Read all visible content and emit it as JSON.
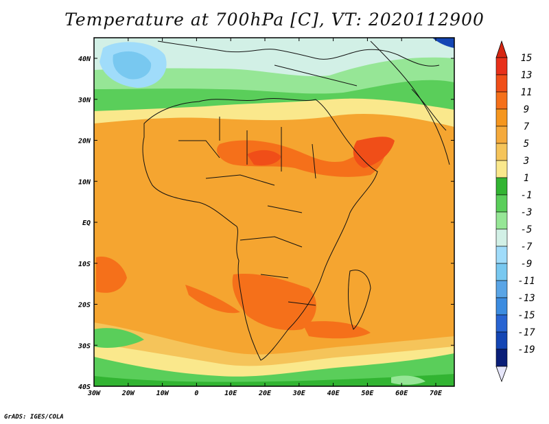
{
  "title": "Temperature at 700hPa [C], VT: 2020112900",
  "credit": "GrADS: IGES/COLA",
  "map": {
    "lon_labels": [
      "30W",
      "20W",
      "10W",
      "0",
      "10E",
      "20E",
      "30E",
      "40E",
      "50E",
      "60E",
      "70E"
    ],
    "lat_labels": [
      "40N",
      "30N",
      "20N",
      "10N",
      "EQ",
      "10S",
      "20S",
      "30S",
      "40S"
    ]
  },
  "colorbar": {
    "labels": [
      "15",
      "13",
      "11",
      "9",
      "7",
      "5",
      "3",
      "1",
      "-1",
      "-3",
      "-5",
      "-7",
      "-9",
      "-11",
      "-13",
      "-15",
      "-17",
      "-19"
    ],
    "colors": [
      "#e8301a",
      "#f04e18",
      "#f5701a",
      "#f5961e",
      "#f5aa3c",
      "#f5c45a",
      "#fae88c",
      "#32b432",
      "#5ace5a",
      "#96e696",
      "#d2f0e6",
      "#a0dcfa",
      "#78c8f0",
      "#5aa5e6",
      "#3c8ce0",
      "#2864d2",
      "#1446b4",
      "#0a1e78"
    ],
    "top_color": "#d62612",
    "bottom_color": "#e6e6fa"
  }
}
